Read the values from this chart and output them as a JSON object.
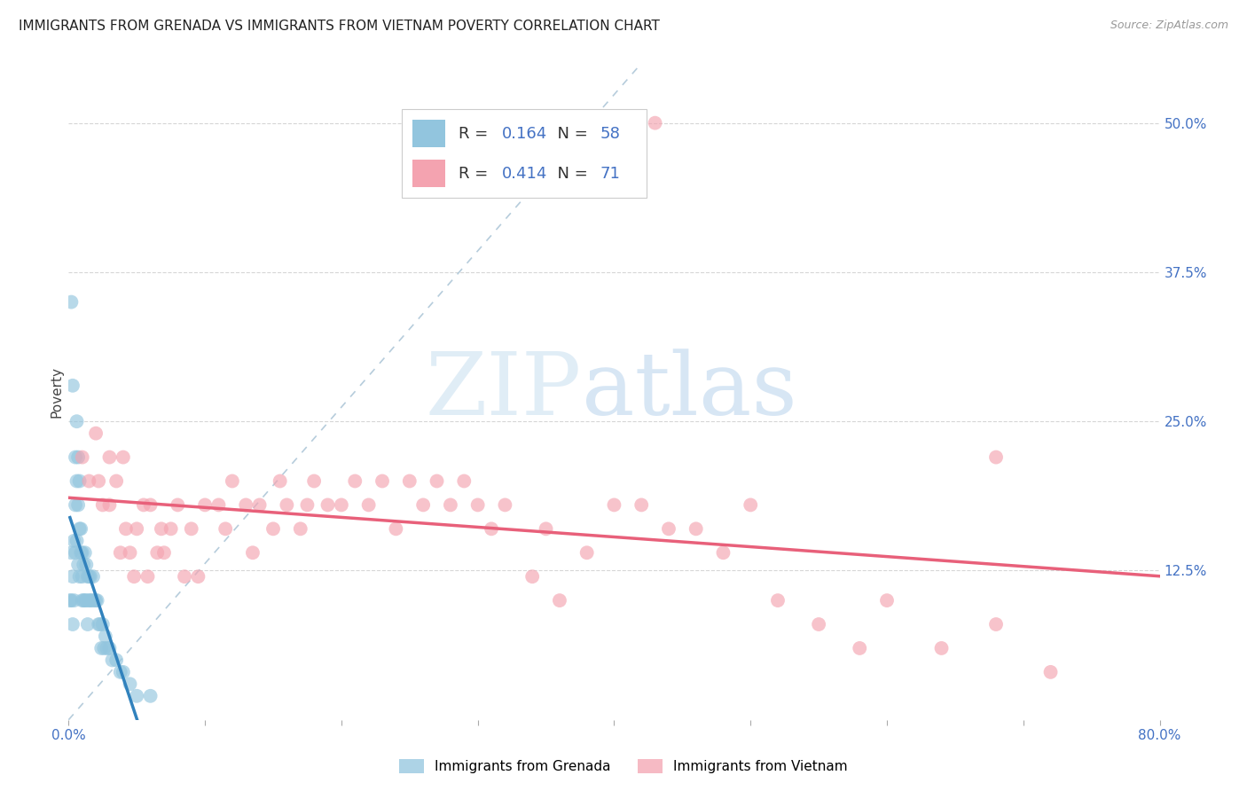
{
  "title": "IMMIGRANTS FROM GRENADA VS IMMIGRANTS FROM VIETNAM POVERTY CORRELATION CHART",
  "source": "Source: ZipAtlas.com",
  "ylabel": "Poverty",
  "watermark_zip": "ZIP",
  "watermark_atlas": "atlas",
  "grenada_R": 0.164,
  "grenada_N": 58,
  "vietnam_R": 0.414,
  "vietnam_N": 71,
  "xlim": [
    0.0,
    0.8
  ],
  "ylim": [
    0.0,
    0.55
  ],
  "ytick_vals": [
    0.125,
    0.25,
    0.375,
    0.5
  ],
  "ytick_labels": [
    "12.5%",
    "25.0%",
    "37.5%",
    "50.0%"
  ],
  "xtick_vals": [
    0.0,
    0.1,
    0.2,
    0.3,
    0.4,
    0.5,
    0.6,
    0.7,
    0.8
  ],
  "xtick_labels": [
    "0.0%",
    "",
    "",
    "",
    "",
    "",
    "",
    "",
    "80.0%"
  ],
  "grenada_color": "#92c5de",
  "vietnam_color": "#f4a3b0",
  "grenada_line_color": "#3182bd",
  "vietnam_line_color": "#e8607a",
  "diag_color": "#aec7d8",
  "grid_color": "#cccccc",
  "tick_color": "#4472c4",
  "background_color": "#ffffff",
  "grenada_x": [
    0.001,
    0.002,
    0.002,
    0.003,
    0.003,
    0.004,
    0.004,
    0.005,
    0.005,
    0.005,
    0.006,
    0.006,
    0.006,
    0.007,
    0.007,
    0.007,
    0.008,
    0.008,
    0.008,
    0.009,
    0.009,
    0.01,
    0.01,
    0.01,
    0.011,
    0.011,
    0.012,
    0.012,
    0.013,
    0.013,
    0.014,
    0.014,
    0.015,
    0.015,
    0.016,
    0.016,
    0.017,
    0.018,
    0.019,
    0.02,
    0.021,
    0.022,
    0.023,
    0.024,
    0.025,
    0.026,
    0.027,
    0.028,
    0.03,
    0.032,
    0.035,
    0.038,
    0.04,
    0.045,
    0.05,
    0.002,
    0.003,
    0.06
  ],
  "grenada_y": [
    0.1,
    0.1,
    0.14,
    0.12,
    0.08,
    0.15,
    0.1,
    0.22,
    0.18,
    0.14,
    0.25,
    0.2,
    0.15,
    0.22,
    0.18,
    0.13,
    0.16,
    0.12,
    0.2,
    0.14,
    0.16,
    0.12,
    0.14,
    0.1,
    0.13,
    0.1,
    0.14,
    0.1,
    0.13,
    0.1,
    0.12,
    0.08,
    0.12,
    0.1,
    0.12,
    0.1,
    0.1,
    0.12,
    0.1,
    0.1,
    0.1,
    0.08,
    0.08,
    0.06,
    0.08,
    0.06,
    0.07,
    0.06,
    0.06,
    0.05,
    0.05,
    0.04,
    0.04,
    0.03,
    0.02,
    0.35,
    0.28,
    0.02
  ],
  "vietnam_x": [
    0.01,
    0.015,
    0.02,
    0.022,
    0.025,
    0.03,
    0.03,
    0.035,
    0.038,
    0.04,
    0.042,
    0.045,
    0.048,
    0.05,
    0.055,
    0.058,
    0.06,
    0.065,
    0.068,
    0.07,
    0.075,
    0.08,
    0.085,
    0.09,
    0.095,
    0.1,
    0.11,
    0.115,
    0.12,
    0.13,
    0.135,
    0.14,
    0.15,
    0.155,
    0.16,
    0.17,
    0.175,
    0.18,
    0.19,
    0.2,
    0.21,
    0.22,
    0.23,
    0.24,
    0.25,
    0.26,
    0.27,
    0.28,
    0.29,
    0.3,
    0.31,
    0.32,
    0.34,
    0.35,
    0.36,
    0.38,
    0.4,
    0.42,
    0.44,
    0.46,
    0.48,
    0.5,
    0.52,
    0.55,
    0.58,
    0.6,
    0.64,
    0.68,
    0.72,
    0.68,
    0.43
  ],
  "vietnam_y": [
    0.22,
    0.2,
    0.24,
    0.2,
    0.18,
    0.22,
    0.18,
    0.2,
    0.14,
    0.22,
    0.16,
    0.14,
    0.12,
    0.16,
    0.18,
    0.12,
    0.18,
    0.14,
    0.16,
    0.14,
    0.16,
    0.18,
    0.12,
    0.16,
    0.12,
    0.18,
    0.18,
    0.16,
    0.2,
    0.18,
    0.14,
    0.18,
    0.16,
    0.2,
    0.18,
    0.16,
    0.18,
    0.2,
    0.18,
    0.18,
    0.2,
    0.18,
    0.2,
    0.16,
    0.2,
    0.18,
    0.2,
    0.18,
    0.2,
    0.18,
    0.16,
    0.18,
    0.12,
    0.16,
    0.1,
    0.14,
    0.18,
    0.18,
    0.16,
    0.16,
    0.14,
    0.18,
    0.1,
    0.08,
    0.06,
    0.1,
    0.06,
    0.08,
    0.04,
    0.22,
    0.5
  ]
}
